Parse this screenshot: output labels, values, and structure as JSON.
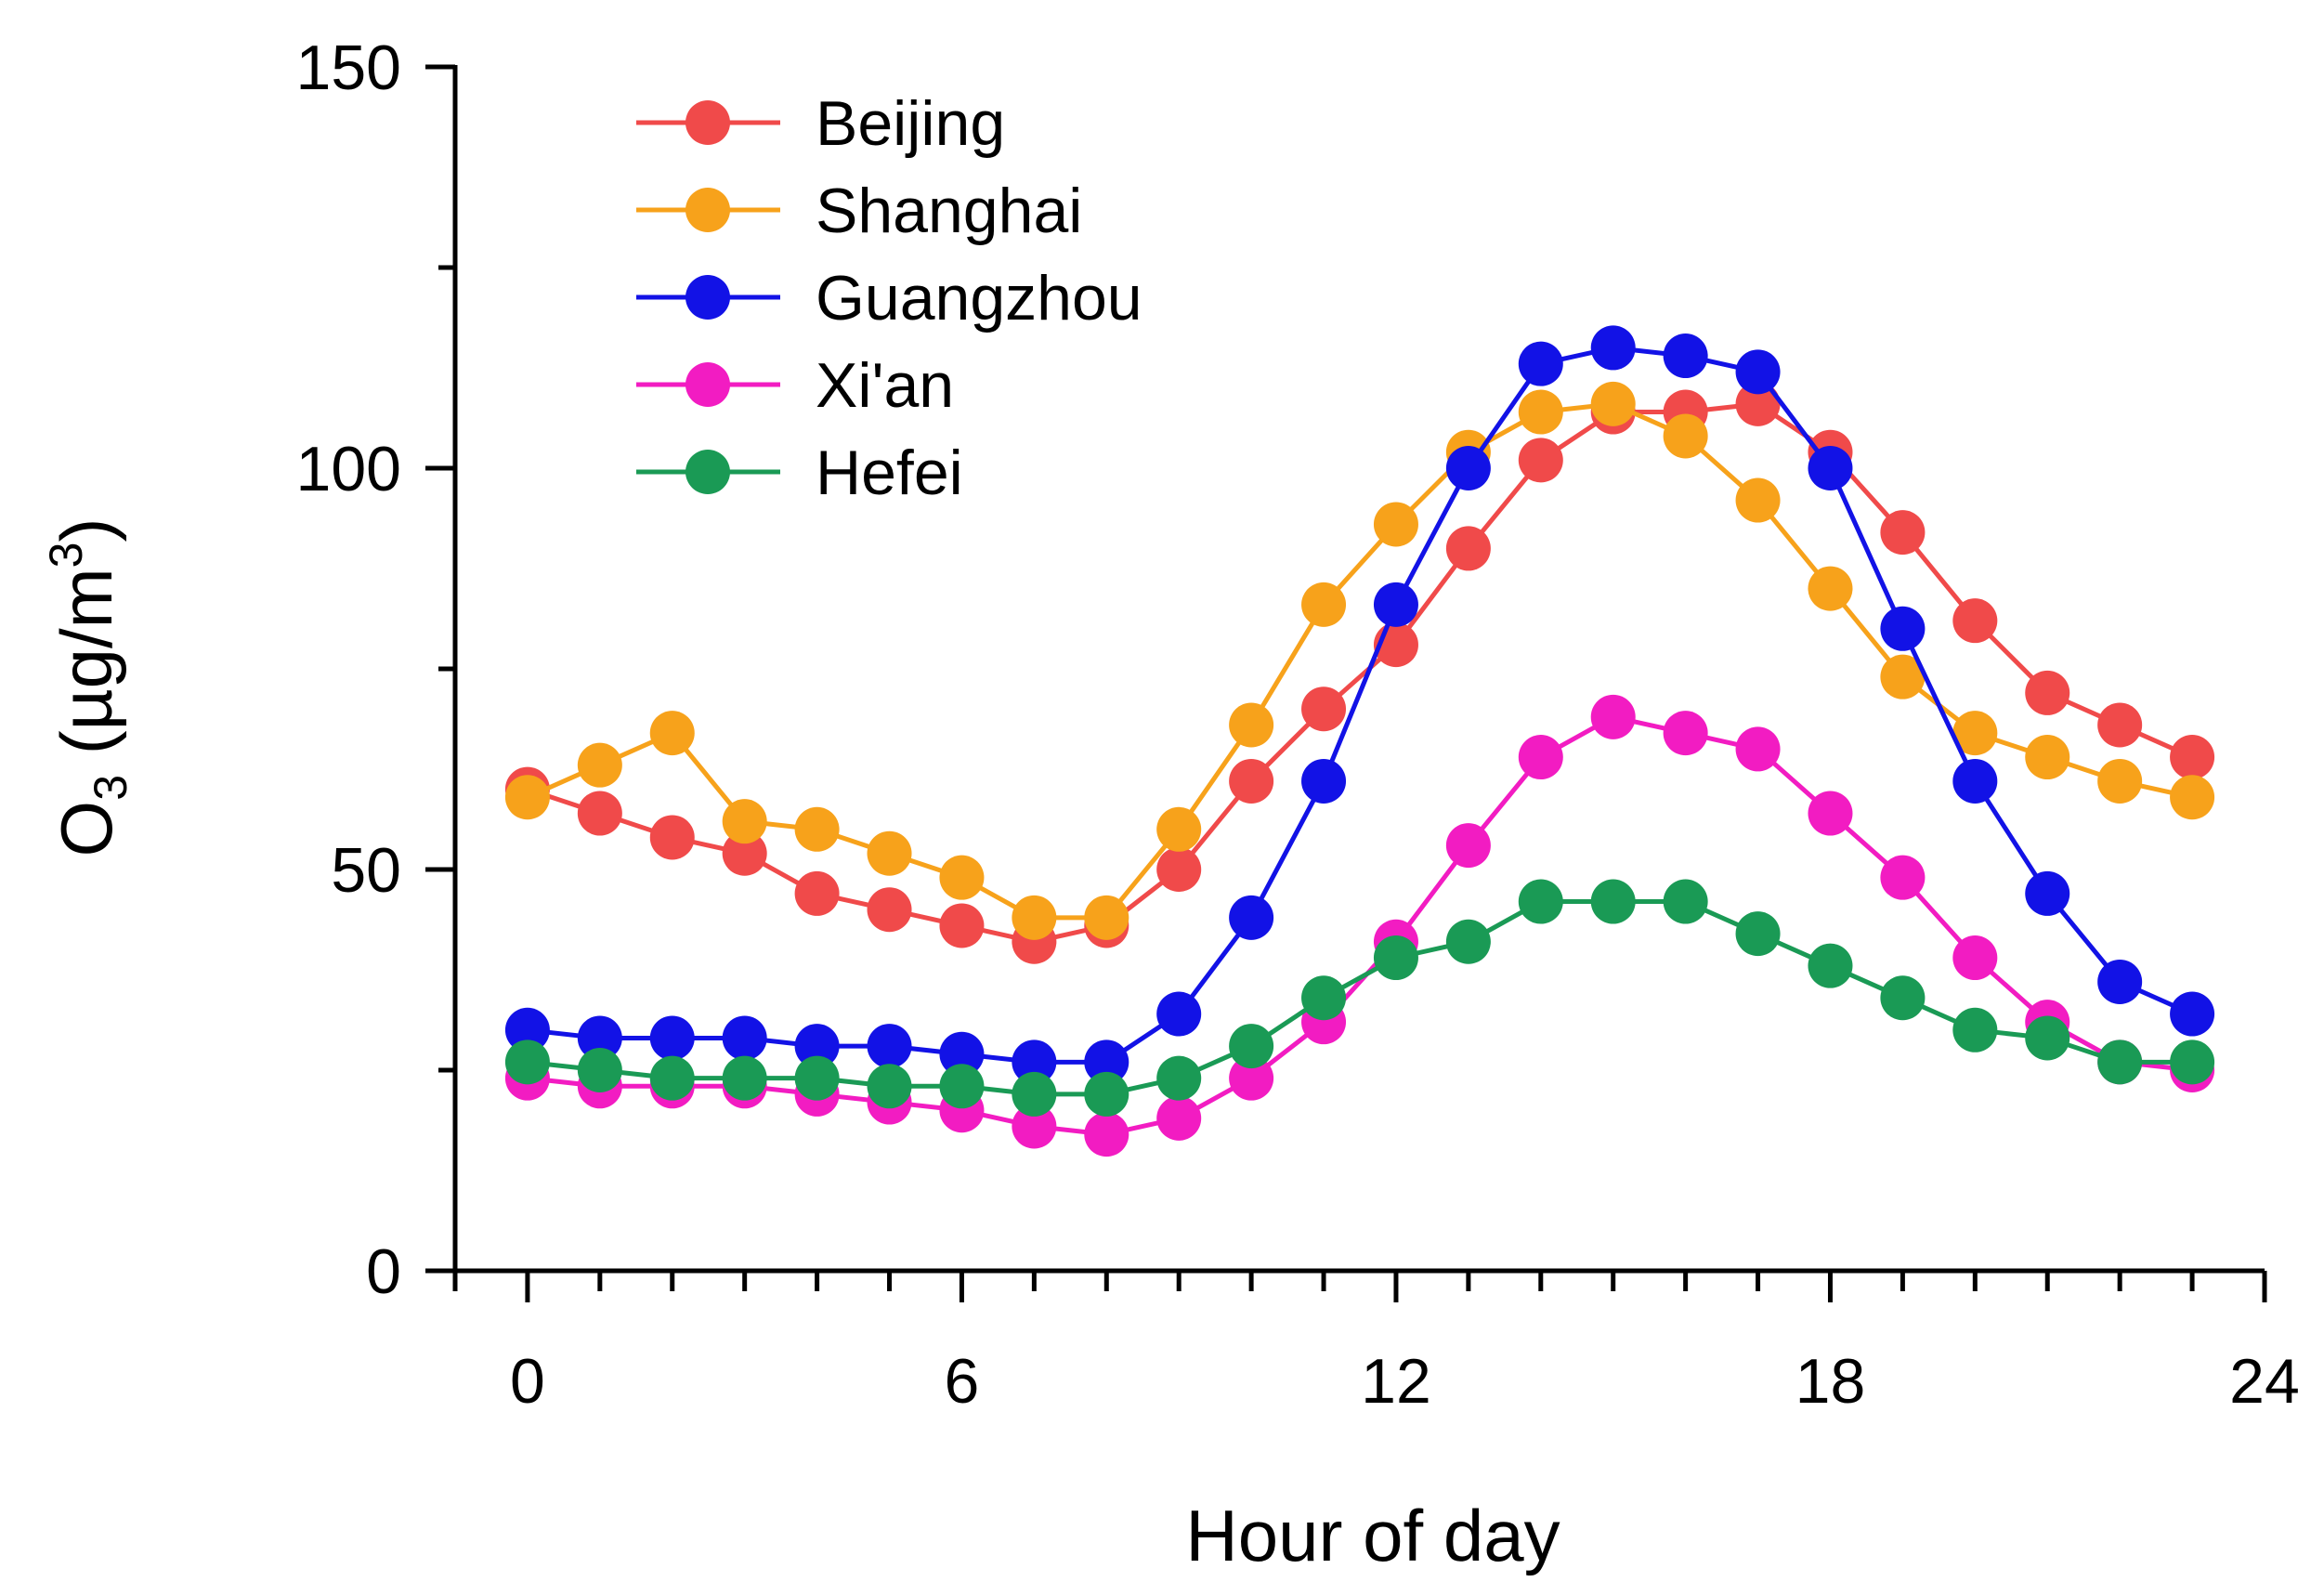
{
  "chart_data": {
    "type": "line",
    "title": "",
    "xlabel": "Hour of day",
    "ylabel": {
      "prefix": "O",
      "subscript": "3",
      "middle": " (µg/m",
      "superscript": "3",
      "suffix": ")"
    },
    "xlim": [
      -1,
      24
    ],
    "ylim": [
      0,
      150
    ],
    "xticks": [
      0,
      6,
      12,
      18,
      24
    ],
    "xtick_labels": [
      "0",
      "6",
      "12",
      "18",
      "24"
    ],
    "yticks": [
      0,
      50,
      100,
      150
    ],
    "ytick_labels": [
      "0",
      "50",
      "100",
      "150"
    ],
    "grid": false,
    "legend_position": "top-left",
    "x": [
      0,
      1,
      2,
      3,
      4,
      5,
      6,
      7,
      8,
      9,
      10,
      11,
      12,
      13,
      14,
      15,
      16,
      17,
      18,
      19,
      20,
      21,
      22,
      23
    ],
    "series": [
      {
        "name": "Beijing",
        "color": "#f04a4a",
        "values": [
          60,
          57,
          54,
          52,
          47,
          45,
          43,
          41,
          43,
          50,
          61,
          70,
          78,
          90,
          101,
          107,
          107,
          108,
          102,
          92,
          81,
          72,
          68,
          64
        ]
      },
      {
        "name": "Shanghai",
        "color": "#f7a21b",
        "values": [
          59,
          63,
          67,
          56,
          55,
          52,
          49,
          44,
          44,
          55,
          68,
          83,
          93,
          102,
          107,
          108,
          104,
          96,
          85,
          74,
          67,
          64,
          61,
          59
        ]
      },
      {
        "name": "Guangzhou",
        "color": "#1212e6",
        "values": [
          30,
          29,
          29,
          29,
          28,
          28,
          27,
          26,
          26,
          32,
          44,
          61,
          83,
          100,
          113,
          115,
          114,
          112,
          100,
          80,
          61,
          47,
          36,
          32
        ]
      },
      {
        "name": "Xi'an",
        "color": "#f21cc2",
        "values": [
          24,
          23,
          23,
          23,
          22,
          21,
          20,
          18,
          17,
          19,
          24,
          31,
          41,
          53,
          64,
          69,
          67,
          65,
          57,
          49,
          39,
          31,
          26,
          25
        ]
      },
      {
        "name": "Hefei",
        "color": "#1a9a55",
        "values": [
          26,
          25,
          24,
          24,
          24,
          23,
          23,
          22,
          22,
          24,
          28,
          34,
          39,
          41,
          46,
          46,
          46,
          42,
          38,
          34,
          30,
          29,
          26,
          26
        ]
      }
    ]
  }
}
